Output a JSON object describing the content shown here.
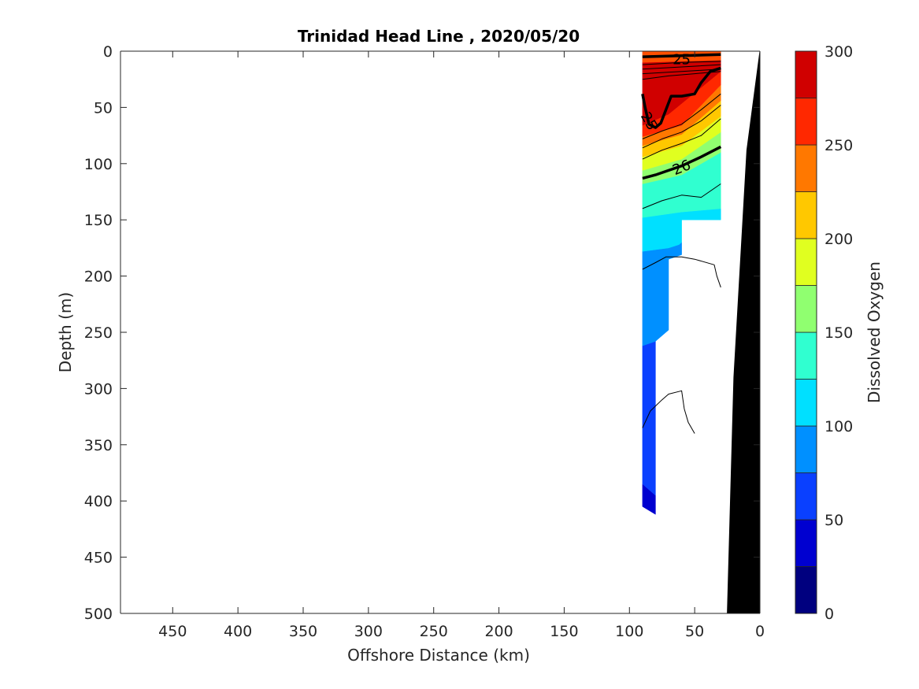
{
  "chart_data": {
    "type": "heatmap",
    "title": "Trinidad Head Line , 2020/05/20",
    "xlabel": "Offshore Distance (km)",
    "ylabel": "Depth (m)",
    "colorbar_label": "Dissolved Oxygen",
    "xlim": [
      490,
      0
    ],
    "x_reversed": true,
    "ylim": [
      0,
      500
    ],
    "y_reversed": true,
    "x_ticks": [
      450,
      400,
      350,
      300,
      250,
      200,
      150,
      100,
      50,
      0
    ],
    "y_ticks": [
      0,
      50,
      100,
      150,
      200,
      250,
      300,
      350,
      400,
      450,
      500
    ],
    "colorbar_ticks": [
      0,
      50,
      100,
      150,
      200,
      250,
      300
    ],
    "colorbar_levels": [
      0,
      25,
      50,
      75,
      100,
      125,
      150,
      175,
      200,
      225,
      250,
      275,
      300
    ],
    "colorbar_colors": [
      "#00007f",
      "#0000d0",
      "#0a40ff",
      "#0090ff",
      "#00e0ff",
      "#30ffd0",
      "#90ff70",
      "#e0ff20",
      "#ffc800",
      "#ff7800",
      "#ff2800",
      "#d00000"
    ],
    "grid": false,
    "fill_bands": [
      {
        "level": 0,
        "color": "#0000d0",
        "polygon": [
          [
            90,
            385
          ],
          [
            80,
            395
          ],
          [
            80,
            412
          ],
          [
            90,
            405
          ]
        ]
      },
      {
        "level": 50,
        "color": "#0a40ff",
        "polygon": [
          [
            90,
            262
          ],
          [
            80,
            258
          ],
          [
            80,
            395
          ],
          [
            90,
            385
          ]
        ]
      },
      {
        "level": 75,
        "color": "#0090ff",
        "polygon": [
          [
            90,
            178
          ],
          [
            70,
            175
          ],
          [
            62,
            172
          ],
          [
            60,
            170
          ],
          [
            60,
            181
          ],
          [
            70,
            185
          ],
          [
            70,
            248
          ],
          [
            80,
            258
          ],
          [
            90,
            262
          ]
        ]
      },
      {
        "level": 100,
        "color": "#00e0ff",
        "polygon": [
          [
            90,
            148
          ],
          [
            60,
            143
          ],
          [
            30,
            140
          ],
          [
            30,
            150
          ],
          [
            60,
            150
          ],
          [
            60,
            170
          ],
          [
            62,
            172
          ],
          [
            70,
            175
          ],
          [
            90,
            178
          ]
        ]
      },
      {
        "level": 125,
        "color": "#30ffd0",
        "polygon": [
          [
            90,
            118
          ],
          [
            60,
            110
          ],
          [
            30,
            90
          ],
          [
            30,
            140
          ],
          [
            60,
            143
          ],
          [
            90,
            148
          ]
        ]
      },
      {
        "level": 150,
        "color": "#90ff70",
        "polygon": [
          [
            90,
            106
          ],
          [
            60,
            96
          ],
          [
            30,
            72
          ],
          [
            30,
            90
          ],
          [
            60,
            110
          ],
          [
            90,
            118
          ]
        ]
      },
      {
        "level": 175,
        "color": "#e0ff20",
        "polygon": [
          [
            90,
            94
          ],
          [
            60,
            84
          ],
          [
            30,
            58
          ],
          [
            30,
            72
          ],
          [
            60,
            96
          ],
          [
            90,
            106
          ]
        ]
      },
      {
        "level": 200,
        "color": "#ffc800",
        "polygon": [
          [
            90,
            84
          ],
          [
            60,
            74
          ],
          [
            30,
            44
          ],
          [
            30,
            58
          ],
          [
            60,
            84
          ],
          [
            90,
            94
          ]
        ]
      },
      {
        "level": 225,
        "color": "#ff7800",
        "polygon": [
          [
            90,
            76
          ],
          [
            60,
            66
          ],
          [
            30,
            30
          ],
          [
            30,
            44
          ],
          [
            60,
            74
          ],
          [
            90,
            84
          ]
        ]
      },
      {
        "level": 250,
        "color": "#ff2800",
        "polygon": [
          [
            90,
            66
          ],
          [
            70,
            56
          ],
          [
            30,
            18
          ],
          [
            30,
            30
          ],
          [
            60,
            66
          ],
          [
            90,
            76
          ]
        ]
      },
      {
        "level": 275,
        "color": "#d00000",
        "polygon": [
          [
            90,
            10
          ],
          [
            30,
            8
          ],
          [
            30,
            18
          ],
          [
            70,
            56
          ],
          [
            90,
            66
          ]
        ]
      },
      {
        "level": 250,
        "color": "#ff5000",
        "polygon": [
          [
            90,
            0
          ],
          [
            30,
            0
          ],
          [
            30,
            8
          ],
          [
            90,
            10
          ]
        ]
      }
    ],
    "contours": [
      {
        "label": "26",
        "bold": true,
        "points": [
          [
            90,
            113
          ],
          [
            80,
            110
          ],
          [
            70,
            106
          ],
          [
            60,
            102
          ],
          [
            45,
            94
          ],
          [
            30,
            85
          ]
        ]
      },
      {
        "label": "25",
        "bold": true,
        "points": [
          [
            90,
            38
          ],
          [
            88,
            50
          ],
          [
            85,
            65
          ],
          [
            80,
            68
          ],
          [
            76,
            64
          ],
          [
            72,
            52
          ],
          [
            68,
            40
          ],
          [
            60,
            40
          ],
          [
            50,
            38
          ],
          [
            45,
            28
          ],
          [
            38,
            18
          ],
          [
            30,
            15
          ]
        ]
      },
      {
        "label": "",
        "bold": false,
        "points": [
          [
            90,
            140
          ],
          [
            75,
            133
          ],
          [
            60,
            128
          ],
          [
            45,
            130
          ],
          [
            30,
            118
          ]
        ]
      },
      {
        "label": "",
        "bold": false,
        "points": [
          [
            90,
            96
          ],
          [
            75,
            88
          ],
          [
            60,
            82
          ],
          [
            45,
            75
          ],
          [
            30,
            60
          ]
        ]
      },
      {
        "label": "",
        "bold": false,
        "points": [
          [
            90,
            86
          ],
          [
            75,
            78
          ],
          [
            60,
            72
          ],
          [
            45,
            62
          ],
          [
            30,
            48
          ]
        ]
      },
      {
        "label": "",
        "bold": false,
        "points": [
          [
            90,
            78
          ],
          [
            75,
            71
          ],
          [
            60,
            65
          ],
          [
            45,
            52
          ],
          [
            30,
            38
          ]
        ]
      },
      {
        "label": "",
        "bold": false,
        "points": [
          [
            90,
            194
          ],
          [
            80,
            188
          ],
          [
            72,
            183
          ],
          [
            60,
            183
          ],
          [
            50,
            185
          ],
          [
            35,
            190
          ],
          [
            33,
            200
          ],
          [
            30,
            210
          ]
        ]
      },
      {
        "label": "",
        "bold": false,
        "points": [
          [
            90,
            335
          ],
          [
            84,
            320
          ],
          [
            75,
            310
          ],
          [
            70,
            305
          ],
          [
            60,
            302
          ],
          [
            58,
            318
          ],
          [
            55,
            330
          ],
          [
            50,
            340
          ]
        ]
      }
    ],
    "top_contours": [
      {
        "label": "25",
        "bold": true,
        "points": [
          [
            90,
            5
          ],
          [
            60,
            4
          ],
          [
            30,
            3
          ]
        ]
      },
      {
        "label": "",
        "bold": false,
        "points": [
          [
            90,
            12
          ],
          [
            60,
            10
          ],
          [
            30,
            9
          ]
        ]
      },
      {
        "label": "",
        "bold": false,
        "points": [
          [
            90,
            16
          ],
          [
            60,
            14
          ],
          [
            30,
            12
          ]
        ]
      },
      {
        "label": "",
        "bold": false,
        "points": [
          [
            90,
            20
          ],
          [
            60,
            18
          ],
          [
            30,
            16
          ]
        ]
      },
      {
        "label": "",
        "bold": false,
        "points": [
          [
            90,
            25
          ],
          [
            70,
            22
          ],
          [
            50,
            20
          ],
          [
            30,
            18
          ]
        ]
      }
    ],
    "bathymetry": [
      [
        0,
        0
      ],
      [
        10,
        88
      ],
      [
        20,
        290
      ],
      [
        25,
        500
      ],
      [
        0,
        500
      ]
    ],
    "colorbar_range": [
      0,
      300
    ]
  }
}
